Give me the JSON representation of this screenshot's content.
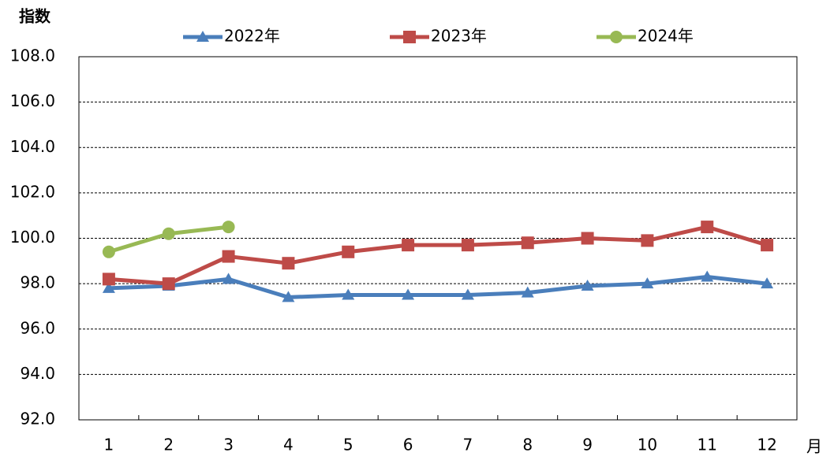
{
  "chart_data": {
    "type": "line",
    "y_label": "指数",
    "x_label": "月",
    "categories": [
      "1",
      "2",
      "3",
      "4",
      "5",
      "6",
      "7",
      "8",
      "9",
      "10",
      "11",
      "12"
    ],
    "series": [
      {
        "name": "2022年",
        "color": "#4a7ebb",
        "marker": "triangle",
        "values": [
          97.8,
          97.9,
          98.2,
          97.4,
          97.5,
          97.5,
          97.5,
          97.6,
          97.9,
          98.0,
          98.3,
          98.0
        ]
      },
      {
        "name": "2023年",
        "color": "#be4b48",
        "marker": "square",
        "values": [
          98.2,
          98.0,
          99.2,
          98.9,
          99.4,
          99.7,
          99.7,
          99.8,
          100.0,
          99.9,
          100.5,
          99.7
        ]
      },
      {
        "name": "2024年",
        "color": "#98b954",
        "marker": "circle",
        "values": [
          99.4,
          100.2,
          100.5,
          null,
          null,
          null,
          null,
          null,
          null,
          null,
          null,
          null
        ]
      }
    ],
    "ylim": [
      92,
      108
    ],
    "yticks": [
      {
        "value": 92,
        "label": "92.0"
      },
      {
        "value": 94,
        "label": "94.0"
      },
      {
        "value": 96,
        "label": "96.0"
      },
      {
        "value": 98,
        "label": "98.0"
      },
      {
        "value": 100,
        "label": "100.0"
      },
      {
        "value": 102,
        "label": "102.0"
      },
      {
        "value": 104,
        "label": "104.0"
      },
      {
        "value": 106,
        "label": "106.0"
      },
      {
        "value": 108,
        "label": "108.0"
      }
    ],
    "grid": true,
    "legend": "top"
  }
}
